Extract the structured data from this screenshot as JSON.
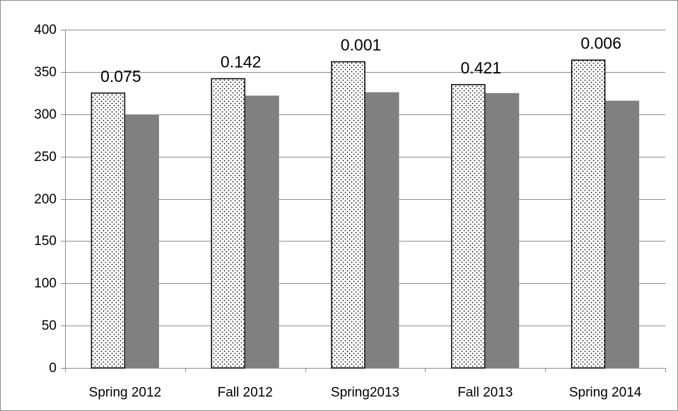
{
  "chart_data": {
    "type": "bar",
    "title": "",
    "xlabel": "",
    "ylabel": "",
    "categories": [
      "Spring 2012",
      "Fall 2012",
      "Spring2013",
      "Fall 2013",
      "Spring 2014"
    ],
    "series": [
      {
        "pattern": "dotted",
        "fill": "#ffffff",
        "stroke": "#000000",
        "values": [
          325,
          342,
          362,
          335,
          364
        ]
      },
      {
        "pattern": "solid",
        "fill": "#808080",
        "values": [
          299,
          322,
          326,
          325,
          316
        ]
      }
    ],
    "annotations": [
      "0.075",
      "0.142",
      "0.001",
      "0.421",
      "0.006"
    ],
    "ylim": [
      0,
      400
    ],
    "yticks": [
      0,
      50,
      100,
      150,
      200,
      250,
      300,
      350,
      400
    ],
    "grid": true,
    "legend": "none",
    "colors": {
      "gridline": "#8c8c8c",
      "axis": "#8c8c8c",
      "text": "#000000"
    }
  }
}
